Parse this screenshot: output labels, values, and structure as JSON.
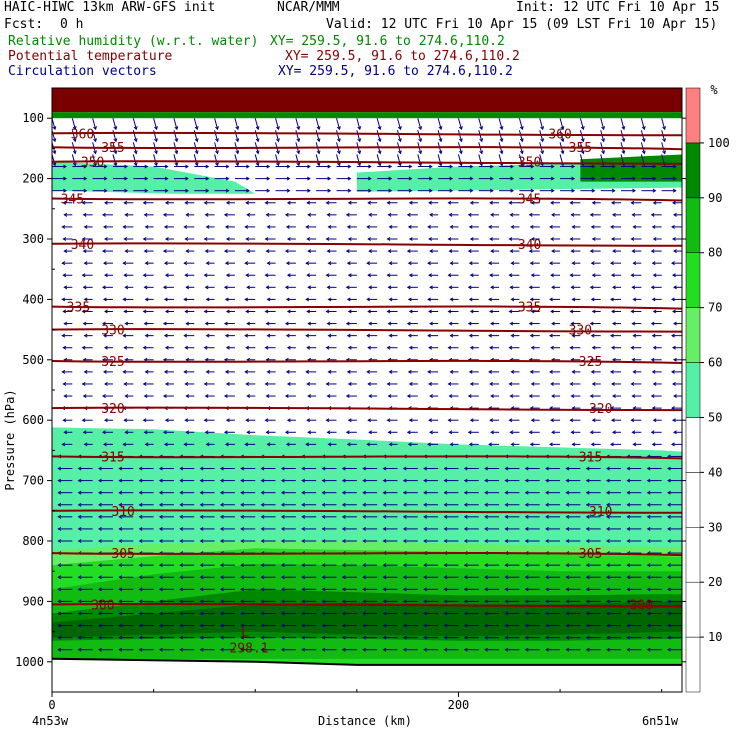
{
  "header": {
    "model": "HAIC-HIWC 13km ARW-GFS init",
    "org": "NCAR/MMM",
    "init": "Init: 12 UTC Fri 10 Apr 15",
    "fcst_label": "Fcst:",
    "fcst_value": "0 h",
    "valid": "Valid: 12 UTC Fri 10 Apr 15 (09 LST Fri 10 Apr 15)",
    "fields": [
      {
        "name": "Relative humidity (w.r.t. water)",
        "xy": "XY= 259.5, 91.6 to 274.6,110.2"
      },
      {
        "name": "Potential temperature",
        "xy": "XY= 259.5, 91.6 to 274.6,110.2"
      },
      {
        "name": "Circulation vectors",
        "xy": "XY= 259.5, 91.6 to 274.6,110.2"
      }
    ]
  },
  "colors": {
    "rh_30": "#ffffff",
    "rh_50": "#55f0a5",
    "rh_60": "#66ee66",
    "rh_70": "#22dd22",
    "rh_80": "#11bb11",
    "rh_90": "#008800",
    "rh_100": "#006600",
    "rh_over": "#ff8080",
    "theta": "#880000",
    "cap": "#7a0000",
    "vectors": "#000088",
    "ground": "#000000"
  },
  "chart_data": {
    "type": "cross-section",
    "xlabel": "Distance (km)",
    "ylabel": "Pressure (hPa)",
    "x_ticks": [
      0,
      200
    ],
    "xlim": [
      0,
      310
    ],
    "x_endpoints": [
      "4n53w",
      "6n51w"
    ],
    "y_ticks": [
      100,
      200,
      300,
      400,
      500,
      600,
      700,
      800,
      900,
      1000
    ],
    "ylim": [
      50,
      1050
    ],
    "colorbar": {
      "unit": "%",
      "levels": [
        10,
        20,
        30,
        40,
        50,
        60,
        70,
        80,
        90,
        100
      ]
    },
    "theta_contours": [
      {
        "value": 360,
        "pressure": 125
      },
      {
        "value": 355,
        "pressure": 148
      },
      {
        "value": 350,
        "pressure": 172
      },
      {
        "value": 345,
        "pressure": 233
      },
      {
        "value": 340,
        "pressure": 308
      },
      {
        "value": 335,
        "pressure": 412
      },
      {
        "value": 330,
        "pressure": 450
      },
      {
        "value": 325,
        "pressure": 502
      },
      {
        "value": 320,
        "pressure": 580
      },
      {
        "value": 315,
        "pressure": 660
      },
      {
        "value": 310,
        "pressure": 750
      },
      {
        "value": 305,
        "pressure": 820
      },
      {
        "value": 300,
        "pressure": 905
      },
      {
        "value": 298.1,
        "pressure": 990
      }
    ],
    "minimum_marker": {
      "letter": "L",
      "value": 298.1
    },
    "moist_layers": [
      {
        "rh": 50,
        "x_km": [
          0,
          50,
          100,
          150,
          200,
          250,
          300,
          310
        ],
        "top_hPa": [
          612,
          615,
          625,
          632,
          640,
          645,
          650,
          652
        ]
      },
      {
        "rh": 60,
        "x_km": [
          0,
          50,
          100,
          150,
          200,
          250,
          300,
          310
        ],
        "top_hPa": [
          815,
          805,
          800,
          800,
          805,
          808,
          810,
          810
        ]
      },
      {
        "rh": 70,
        "x_km": [
          0,
          50,
          100,
          150,
          200,
          250,
          300,
          310
        ],
        "top_hPa": [
          840,
          825,
          812,
          815,
          818,
          822,
          825,
          826
        ]
      },
      {
        "rh": 80,
        "x_km": [
          0,
          50,
          100,
          150,
          200,
          250,
          300,
          310
        ],
        "top_hPa": [
          880,
          855,
          838,
          840,
          845,
          850,
          850,
          850
        ]
      },
      {
        "rh": 90,
        "x_km": [
          0,
          50,
          100,
          150,
          200,
          250,
          300,
          310
        ],
        "top_hPa": [
          920,
          900,
          880,
          885,
          890,
          890,
          888,
          888
        ]
      }
    ]
  }
}
